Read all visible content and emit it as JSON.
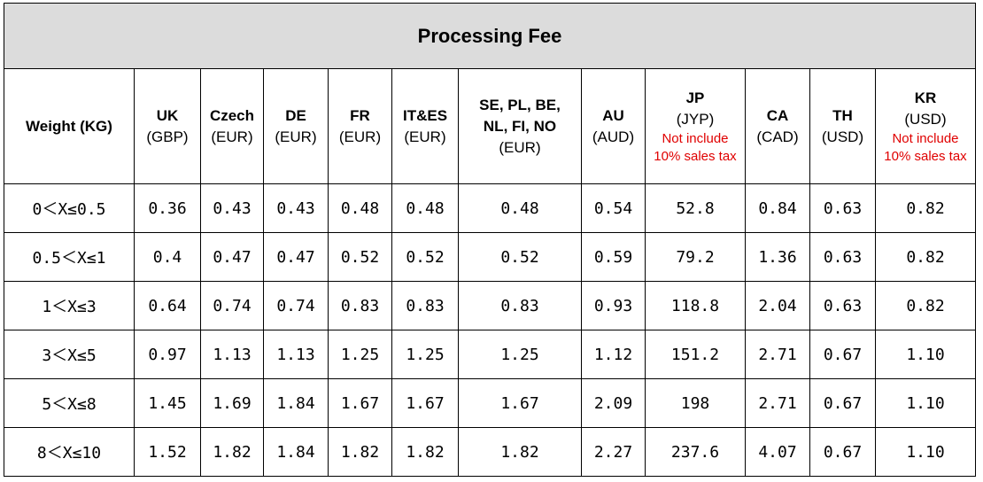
{
  "title": "Processing Fee",
  "header": {
    "weight_label": "Weight (KG)",
    "columns": [
      {
        "code": "UK",
        "currency": "(GBP)",
        "note": ""
      },
      {
        "code": "Czech",
        "currency": "(EUR)",
        "note": ""
      },
      {
        "code": "DE",
        "currency": "(EUR)",
        "note": ""
      },
      {
        "code": "FR",
        "currency": "(EUR)",
        "note": ""
      },
      {
        "code": "IT&ES",
        "currency": "(EUR)",
        "note": ""
      },
      {
        "code": "SE, PL, BE, NL, FI, NO",
        "currency": "(EUR)",
        "note": ""
      },
      {
        "code": "AU",
        "currency": "(AUD)",
        "note": ""
      },
      {
        "code": "JP",
        "currency": "(JYP)",
        "note": "Not include 10% sales tax"
      },
      {
        "code": "CA",
        "currency": "(CAD)",
        "note": ""
      },
      {
        "code": "TH",
        "currency": "(USD)",
        "note": ""
      },
      {
        "code": "KR",
        "currency": "(USD)",
        "note": "Not include 10% sales tax"
      }
    ]
  },
  "rows": [
    {
      "weight": "0＜X≤0.5",
      "values": [
        "0.36",
        "0.43",
        "0.43",
        "0.48",
        "0.48",
        "0.48",
        "0.54",
        "52.8",
        "0.84",
        "0.63",
        "0.82"
      ]
    },
    {
      "weight": "0.5＜X≤1",
      "values": [
        "0.4",
        "0.47",
        "0.47",
        "0.52",
        "0.52",
        "0.52",
        "0.59",
        "79.2",
        "1.36",
        "0.63",
        "0.82"
      ]
    },
    {
      "weight": "1＜X≤3",
      "values": [
        "0.64",
        "0.74",
        "0.74",
        "0.83",
        "0.83",
        "0.83",
        "0.93",
        "118.8",
        "2.04",
        "0.63",
        "0.82"
      ]
    },
    {
      "weight": "3＜X≤5",
      "values": [
        "0.97",
        "1.13",
        "1.13",
        "1.25",
        "1.25",
        "1.25",
        "1.12",
        "151.2",
        "2.71",
        "0.67",
        "1.10"
      ]
    },
    {
      "weight": "5＜X≤8",
      "values": [
        "1.45",
        "1.69",
        "1.84",
        "1.67",
        "1.67",
        "1.67",
        "2.09",
        "198",
        "2.71",
        "0.67",
        "1.10"
      ]
    },
    {
      "weight": "8＜X≤10",
      "values": [
        "1.52",
        "1.82",
        "1.84",
        "1.82",
        "1.82",
        "1.82",
        "2.27",
        "237.6",
        "4.07",
        "0.67",
        "1.10"
      ]
    }
  ]
}
